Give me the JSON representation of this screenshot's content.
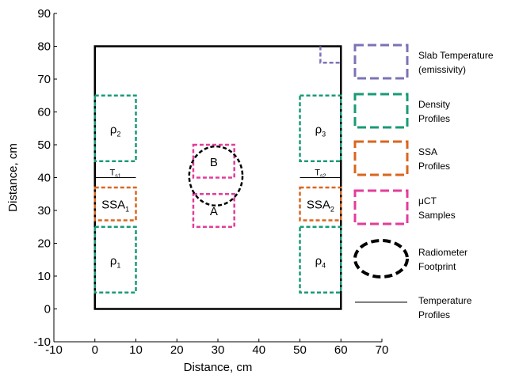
{
  "chart_data": {
    "type": "diagram",
    "xlabel": "Distance, cm",
    "ylabel": "Distance, cm",
    "xlim": [
      -10,
      70
    ],
    "ylim": [
      -10,
      90
    ],
    "xticks": [
      -10,
      0,
      10,
      20,
      30,
      40,
      50,
      60,
      70
    ],
    "yticks": [
      -10,
      0,
      10,
      20,
      30,
      40,
      50,
      60,
      70,
      80,
      90
    ],
    "slab": {
      "x": [
        0,
        60
      ],
      "y": [
        0,
        80
      ],
      "color": "#000000"
    },
    "colors": {
      "slab_temperature": "#7b73b6",
      "density": "#1a9a77",
      "ssa": "#d9661f",
      "uct": "#e23c9b",
      "radiometer": "#000000",
      "temperature": "#000000"
    },
    "density_profiles": [
      {
        "label_main": "ρ",
        "label_sub": "2",
        "x": [
          0,
          10
        ],
        "y": [
          45,
          65
        ]
      },
      {
        "label_main": "ρ",
        "label_sub": "1",
        "x": [
          0,
          10
        ],
        "y": [
          5,
          25
        ]
      },
      {
        "label_main": "ρ",
        "label_sub": "3",
        "x": [
          50,
          60
        ],
        "y": [
          45,
          65
        ]
      },
      {
        "label_main": "ρ",
        "label_sub": "4",
        "x": [
          50,
          60
        ],
        "y": [
          5,
          25
        ]
      }
    ],
    "ssa_profiles": [
      {
        "label_main": "SSA",
        "label_sub": "1",
        "x": [
          0,
          10
        ],
        "y": [
          27,
          37
        ]
      },
      {
        "label_main": "SSA",
        "label_sub": "2",
        "x": [
          50,
          60
        ],
        "y": [
          27,
          37
        ]
      }
    ],
    "uct_samples": [
      {
        "label": "B",
        "x": [
          24,
          34
        ],
        "y": [
          40,
          50
        ]
      },
      {
        "label": "A",
        "x": [
          24,
          34
        ],
        "y": [
          25,
          35
        ]
      }
    ],
    "slab_temperature_box": {
      "x": [
        55,
        60
      ],
      "y": [
        75,
        80
      ]
    },
    "radiometer_footprint": {
      "cx": 29.5,
      "cy": 40.5,
      "rx": 6.5,
      "ry": 9
    },
    "temperature_profiles": [
      {
        "label_main": "T",
        "label_sub": "s1",
        "x": [
          0,
          10
        ],
        "y": 40
      },
      {
        "label_main": "T",
        "label_sub": "s2",
        "x": [
          50,
          60
        ],
        "y": 40
      }
    ]
  },
  "legend": [
    {
      "key": "slab_temperature",
      "symbol": "box",
      "lines": [
        "Slab Temperature",
        "(emissivity)"
      ]
    },
    {
      "key": "density",
      "symbol": "box",
      "lines": [
        "Density",
        "Profiles"
      ]
    },
    {
      "key": "ssa",
      "symbol": "box",
      "lines": [
        "SSA",
        "Profiles"
      ]
    },
    {
      "key": "uct",
      "symbol": "box",
      "lines": [
        "μCT",
        "Samples"
      ]
    },
    {
      "key": "radiometer",
      "symbol": "ellipse",
      "lines": [
        "Radiometer",
        "Footprint"
      ]
    },
    {
      "key": "temperature",
      "symbol": "line",
      "lines": [
        "Temperature",
        "Profiles"
      ]
    }
  ]
}
